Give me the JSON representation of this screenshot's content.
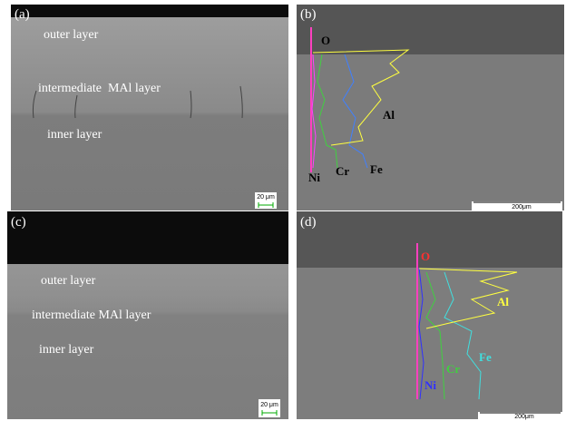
{
  "panels": [
    {
      "label": "(a)",
      "annotations": [
        "outer layer",
        "intermediate  MAl layer",
        "inner layer"
      ],
      "scale_bar": "20 μm"
    },
    {
      "label": "(b)",
      "annotations": [
        "O",
        "Al",
        "Ni",
        "Cr",
        "Fe"
      ],
      "scale_bar": "200μm"
    },
    {
      "label": "(c)",
      "annotations": [
        "outer layer",
        "intermediate MAl layer",
        "inner layer"
      ],
      "scale_bar": "20 μm"
    },
    {
      "label": "(d)",
      "annotations": [
        "O",
        "Al",
        "Ni",
        "Cr",
        "Fe"
      ],
      "scale_bar": "200μm"
    }
  ]
}
